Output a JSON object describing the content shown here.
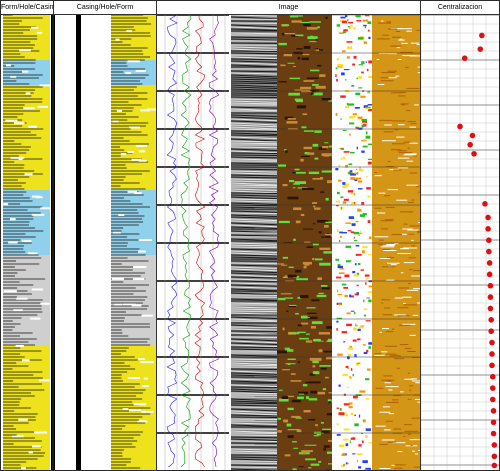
{
  "tracks": {
    "form_hole_casing": {
      "label": "Form/Hole/Casing"
    },
    "casing_hole_form": {
      "label": "Casing/Hole/Form"
    },
    "image": {
      "label": "Image"
    },
    "centralization": {
      "label": "Centralizacion"
    }
  },
  "colors": {
    "formation_yellow": "#ede21b",
    "formation_blue": "#8fd0ea",
    "formation_grey": "#cfcfcf",
    "casing_black": "#000000",
    "image_brown": "#6b3e12",
    "image_orange": "#d49616",
    "image_green": "#5ee03a",
    "marker_red": "#e0100f",
    "grid_grey": "#c8c8c8"
  },
  "centralization_markers": [
    {
      "depth_frac": 0.045,
      "offset_frac": 0.78
    },
    {
      "depth_frac": 0.075,
      "offset_frac": 0.76
    },
    {
      "depth_frac": 0.095,
      "offset_frac": 0.56
    },
    {
      "depth_frac": 0.245,
      "offset_frac": 0.5
    },
    {
      "depth_frac": 0.265,
      "offset_frac": 0.66
    },
    {
      "depth_frac": 0.285,
      "offset_frac": 0.63
    },
    {
      "depth_frac": 0.305,
      "offset_frac": 0.68
    },
    {
      "depth_frac": 0.415,
      "offset_frac": 0.82
    },
    {
      "depth_frac": 0.445,
      "offset_frac": 0.86
    },
    {
      "depth_frac": 0.47,
      "offset_frac": 0.86
    },
    {
      "depth_frac": 0.495,
      "offset_frac": 0.87
    },
    {
      "depth_frac": 0.52,
      "offset_frac": 0.87
    },
    {
      "depth_frac": 0.545,
      "offset_frac": 0.88
    },
    {
      "depth_frac": 0.57,
      "offset_frac": 0.88
    },
    {
      "depth_frac": 0.595,
      "offset_frac": 0.89
    },
    {
      "depth_frac": 0.62,
      "offset_frac": 0.89
    },
    {
      "depth_frac": 0.645,
      "offset_frac": 0.89
    },
    {
      "depth_frac": 0.67,
      "offset_frac": 0.9
    },
    {
      "depth_frac": 0.695,
      "offset_frac": 0.9
    },
    {
      "depth_frac": 0.72,
      "offset_frac": 0.91
    },
    {
      "depth_frac": 0.745,
      "offset_frac": 0.91
    },
    {
      "depth_frac": 0.77,
      "offset_frac": 0.91
    },
    {
      "depth_frac": 0.795,
      "offset_frac": 0.92
    },
    {
      "depth_frac": 0.82,
      "offset_frac": 0.92
    },
    {
      "depth_frac": 0.845,
      "offset_frac": 0.92
    },
    {
      "depth_frac": 0.87,
      "offset_frac": 0.93
    },
    {
      "depth_frac": 0.895,
      "offset_frac": 0.93
    },
    {
      "depth_frac": 0.92,
      "offset_frac": 0.93
    },
    {
      "depth_frac": 0.945,
      "offset_frac": 0.94
    },
    {
      "depth_frac": 0.97,
      "offset_frac": 0.94
    },
    {
      "depth_frac": 0.99,
      "offset_frac": 0.94
    }
  ]
}
